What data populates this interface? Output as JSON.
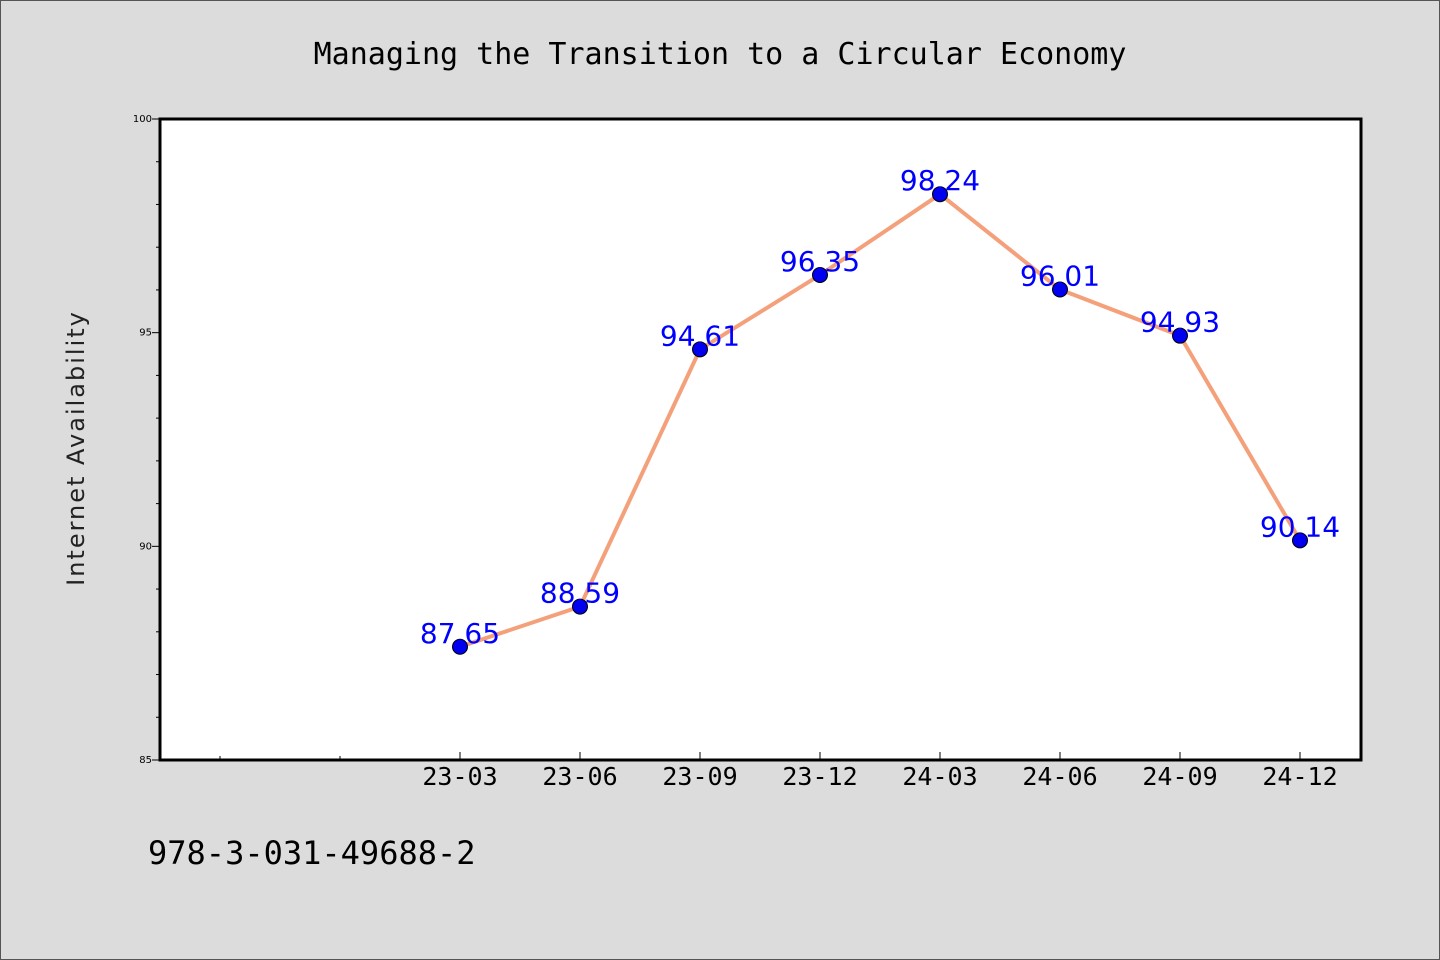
{
  "chart_data": {
    "type": "line",
    "title": "Managing the Transition to a Circular Economy",
    "xlabel": "",
    "ylabel": "Internet Availability",
    "categories": [
      "23-03",
      "23-06",
      "23-09",
      "23-12",
      "24-03",
      "24-06",
      "24-09",
      "24-12"
    ],
    "series": [
      {
        "values": [
          87.65,
          88.59,
          94.61,
          96.35,
          98.24,
          96.01,
          94.93,
          90.14
        ],
        "value_labels": [
          "87.65",
          "88.59",
          "94.61",
          "96.35",
          "98.24",
          "96.01",
          "94.93",
          "90.14"
        ]
      }
    ],
    "ylim": [
      85,
      100
    ],
    "y_major_ticks": [
      85,
      90,
      95,
      100
    ],
    "y_tick_labels": [
      "85",
      "90",
      "95",
      "100"
    ],
    "y_minor_step": 1,
    "x_leading_empty_ticks": 2,
    "grid": false,
    "legend": "none",
    "colors": {
      "line": "#f4a07a",
      "marker": "#0000ee",
      "data_label": "#0000ff",
      "background": "#dcdcdc",
      "plot_background": "#ffffff"
    }
  },
  "footer_text": "978-3-031-49688-2"
}
